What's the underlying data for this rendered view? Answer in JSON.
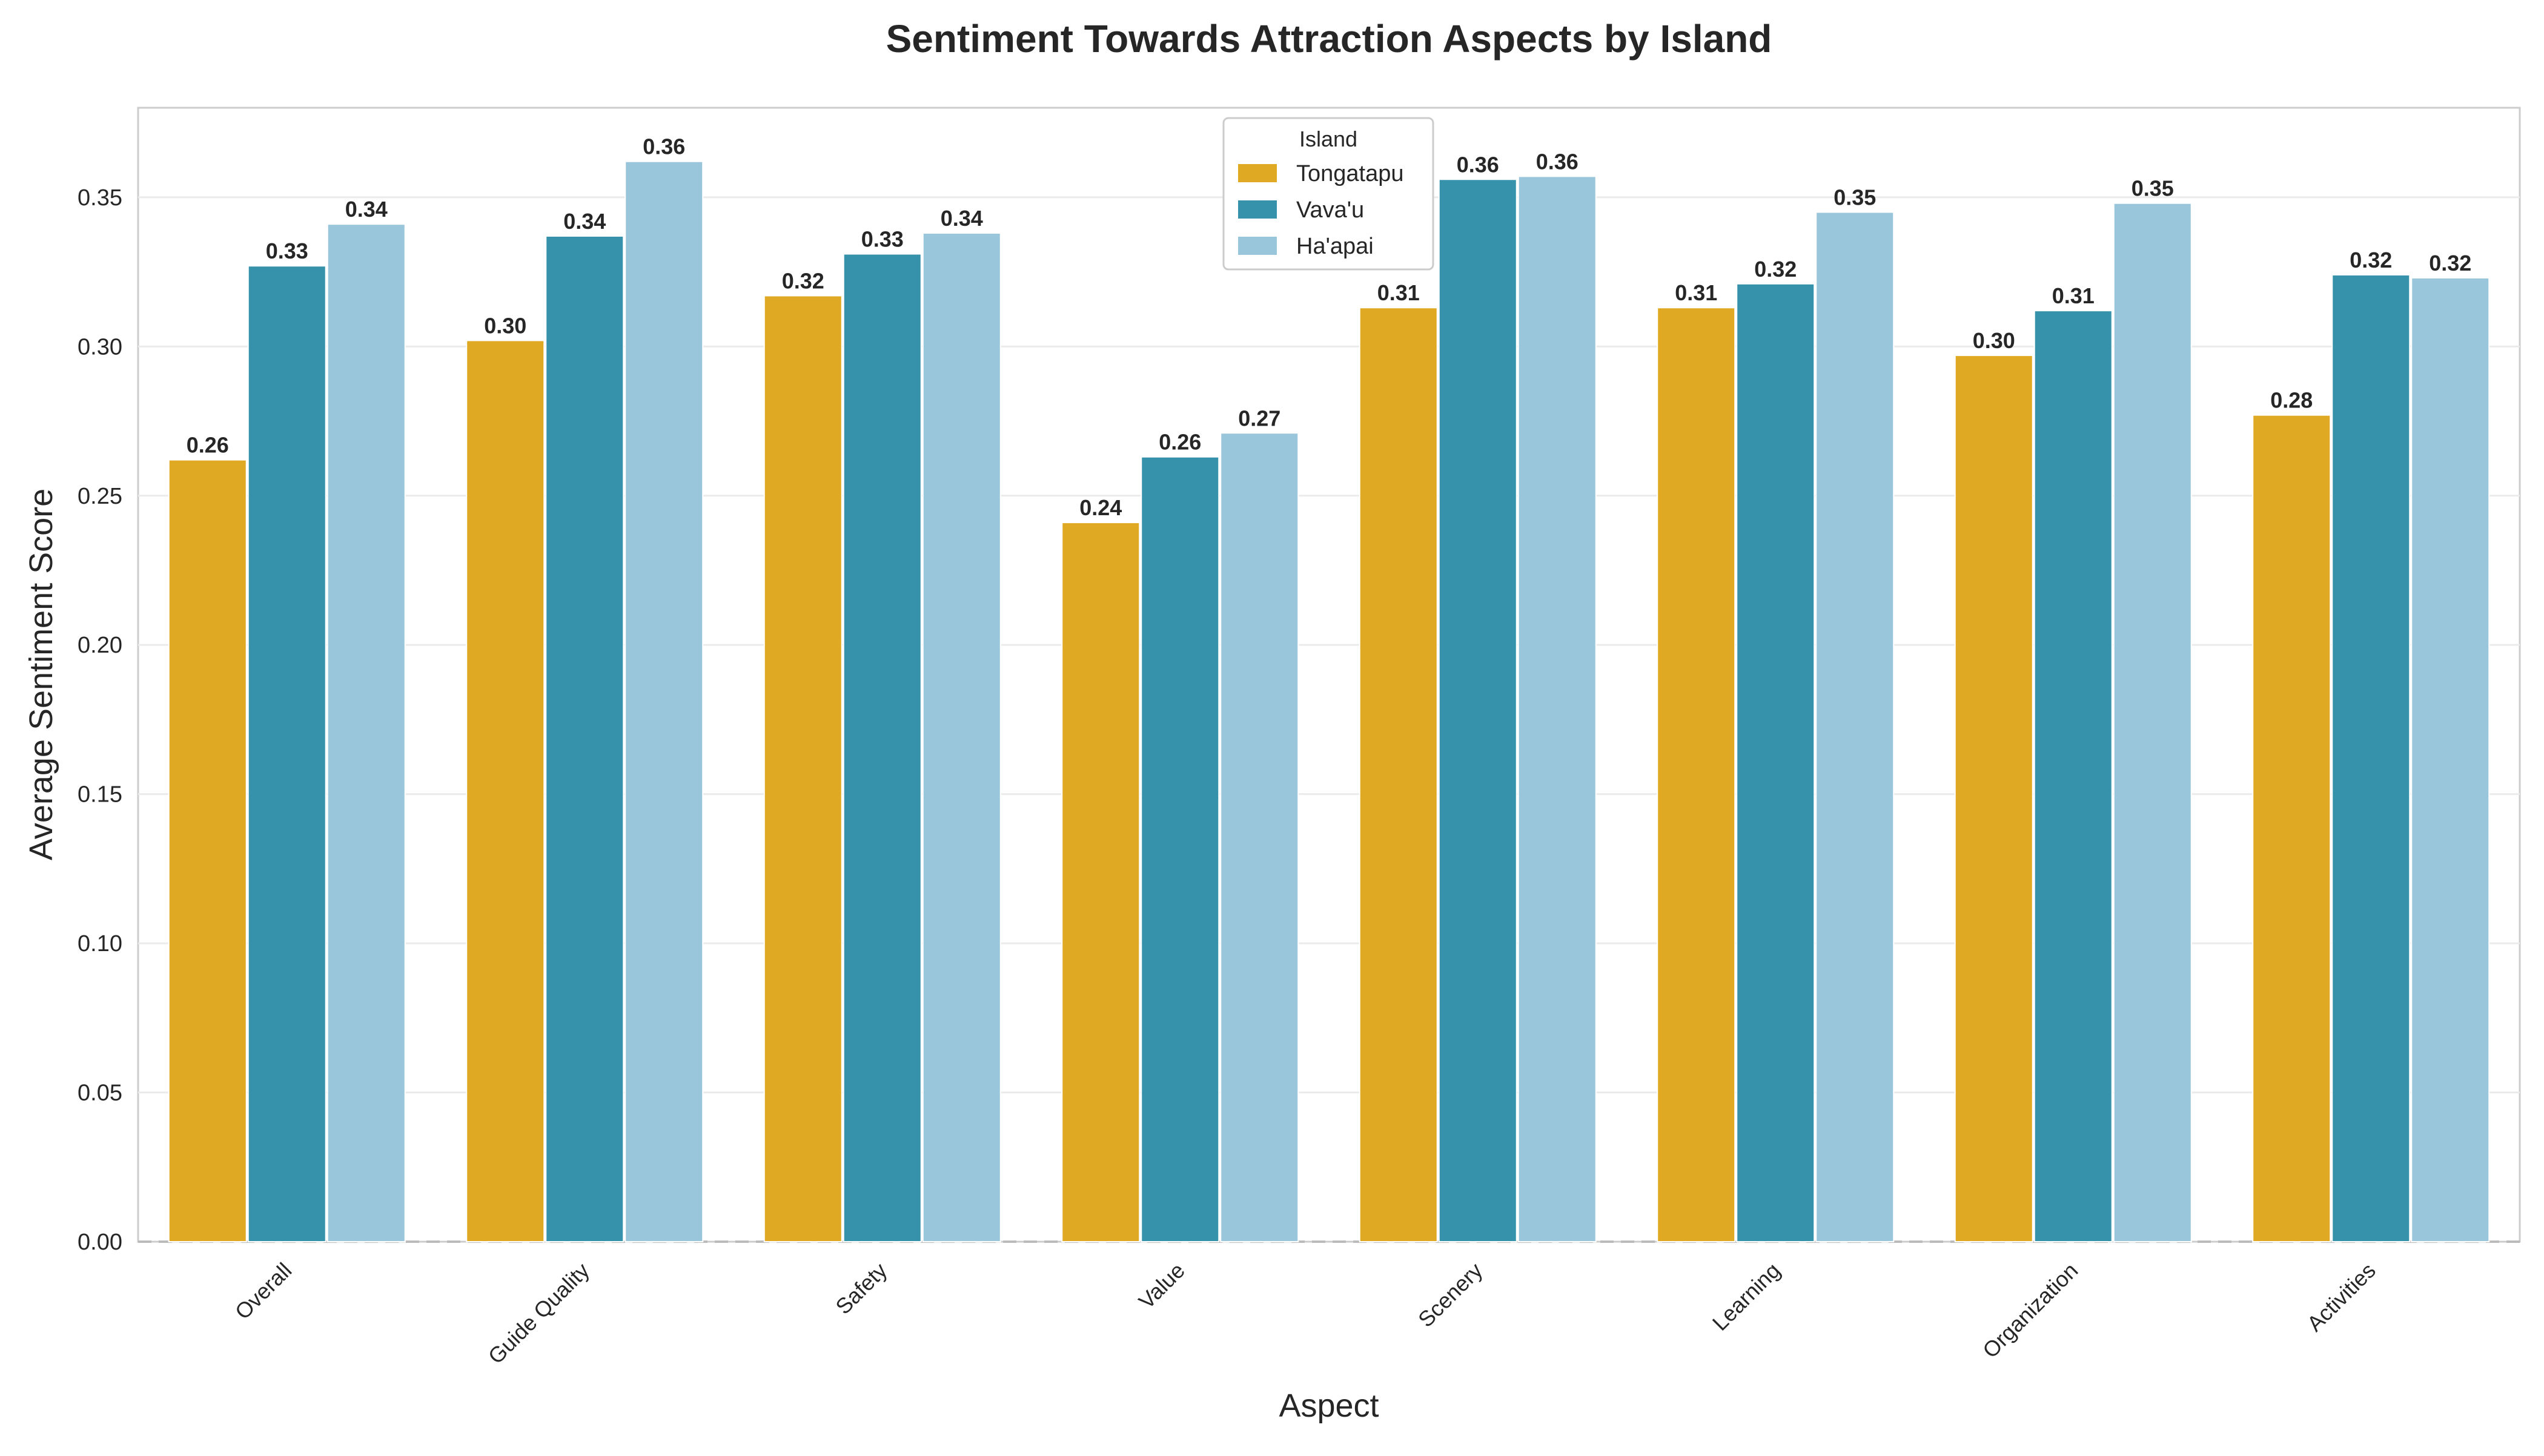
{
  "chart_data": {
    "type": "bar",
    "title": "Sentiment Towards Attraction Aspects by Island",
    "xlabel": "Aspect",
    "ylabel": "Average Sentiment Score",
    "ylim": [
      0,
      0.38
    ],
    "yticks": [
      "0.00",
      "0.05",
      "0.10",
      "0.15",
      "0.20",
      "0.25",
      "0.30",
      "0.35"
    ],
    "grid": true,
    "legend": {
      "title": "Island",
      "position": "top-center"
    },
    "categories": [
      "Overall",
      "Guide Quality",
      "Safety",
      "Value",
      "Scenery",
      "Learning",
      "Organization",
      "Activities"
    ],
    "series": [
      {
        "name": "Tongatapu",
        "color": "#E0A923",
        "values": [
          0.262,
          0.302,
          0.317,
          0.241,
          0.313,
          0.313,
          0.297,
          0.277
        ],
        "labels": [
          "0.26",
          "0.30",
          "0.32",
          "0.24",
          "0.31",
          "0.31",
          "0.30",
          "0.28"
        ]
      },
      {
        "name": "Vava'u",
        "color": "#3592AA",
        "values": [
          0.327,
          0.337,
          0.331,
          0.263,
          0.356,
          0.321,
          0.312,
          0.324
        ],
        "labels": [
          "0.33",
          "0.34",
          "0.33",
          "0.26",
          "0.36",
          "0.32",
          "0.31",
          "0.32"
        ]
      },
      {
        "name": "Ha'apai",
        "color": "#9AC6DB",
        "values": [
          0.341,
          0.362,
          0.338,
          0.271,
          0.357,
          0.345,
          0.348,
          0.323
        ],
        "labels": [
          "0.34",
          "0.36",
          "0.34",
          "0.27",
          "0.36",
          "0.35",
          "0.35",
          "0.32"
        ]
      }
    ]
  }
}
